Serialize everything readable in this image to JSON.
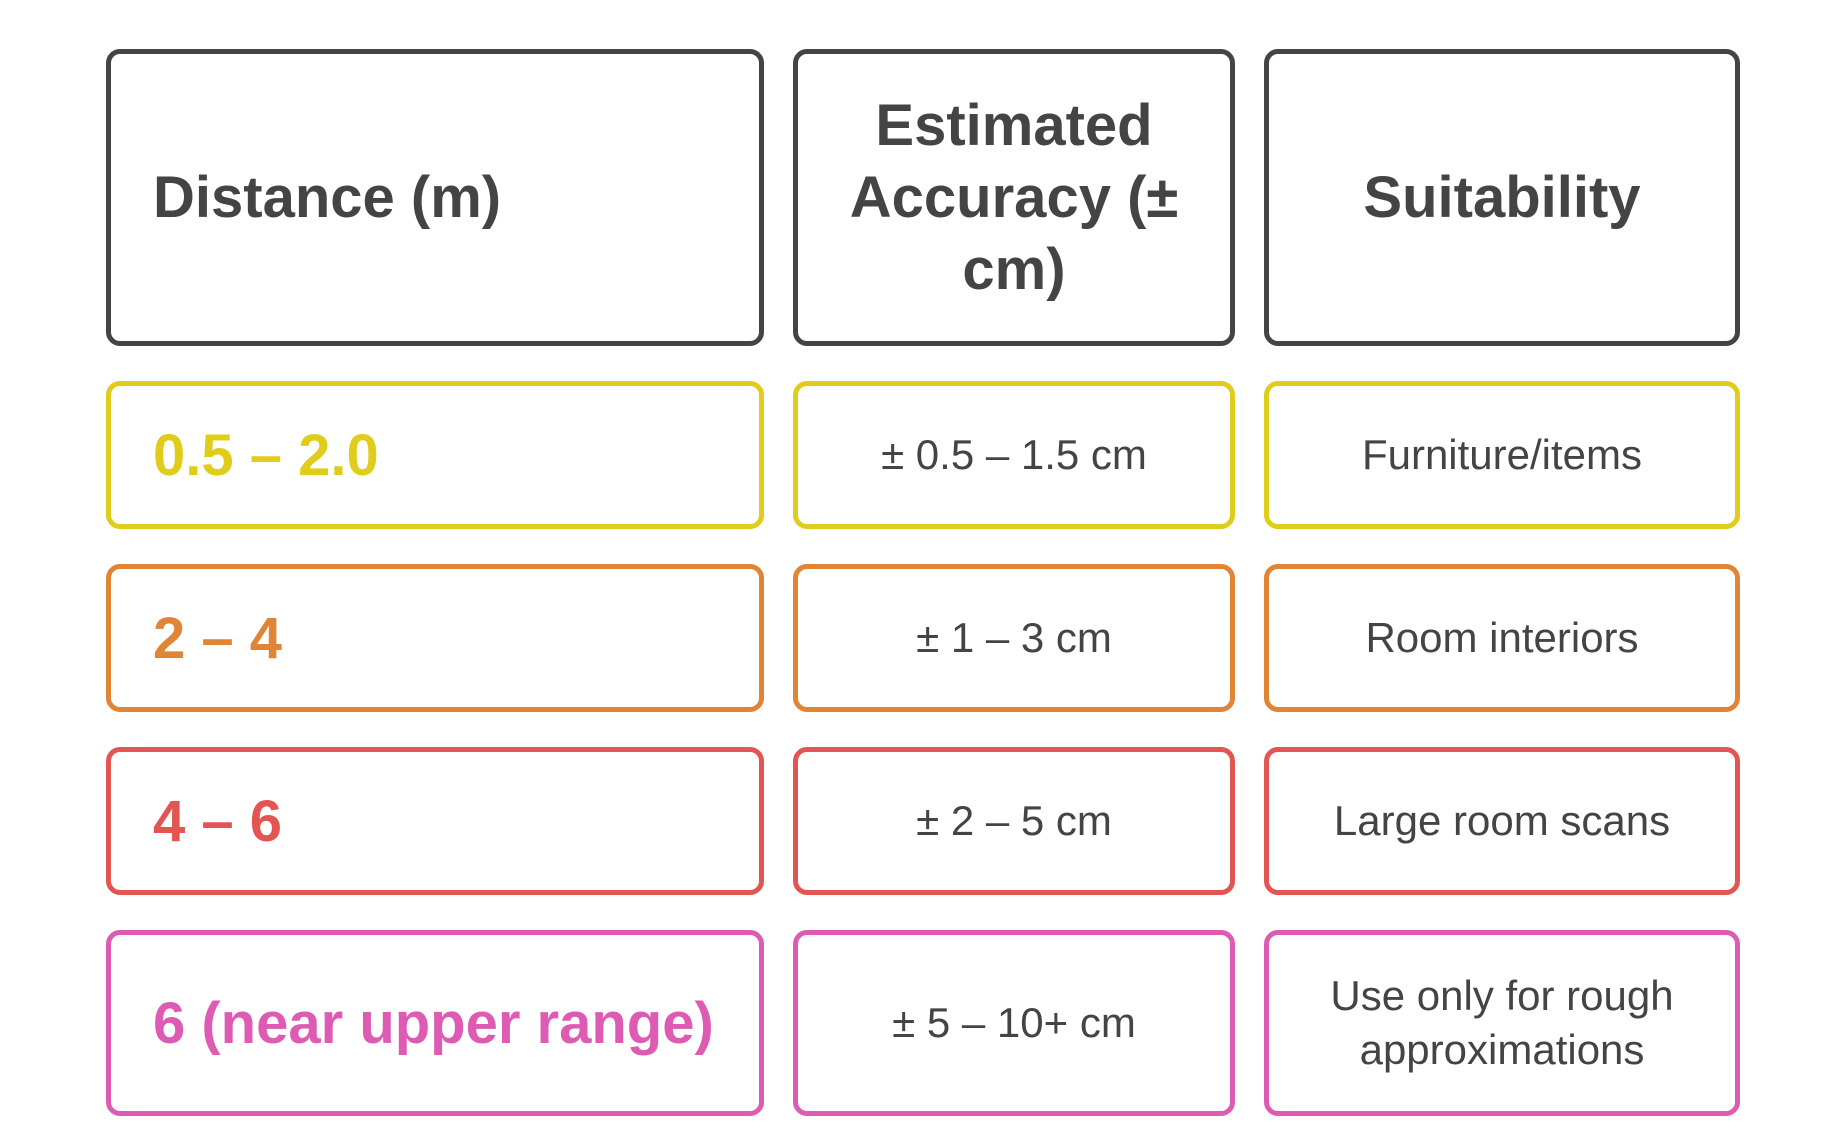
{
  "table": {
    "headers": [
      "Distance (m)",
      "Estimated Accuracy (± cm)",
      "Suitability"
    ],
    "rows": [
      {
        "distance": "0.5 – 2.0",
        "accuracy": "± 0.5 – 1.5 cm",
        "suitability": "Furniture/items",
        "color": "#e0cc1a"
      },
      {
        "distance": "2 – 4",
        "accuracy": "± 1 – 3 cm",
        "suitability": "Room interiors",
        "color": "#e08436"
      },
      {
        "distance": "4 – 6",
        "accuracy": "± 2 – 5 cm",
        "suitability": "Large room scans",
        "color": "#e25552"
      },
      {
        "distance": "6 (near upper range)",
        "accuracy": "± 5 – 10+ cm",
        "suitability": "Use only for rough approximations",
        "color": "#dd5bb3"
      }
    ]
  },
  "colors": {
    "header_border": "#444444",
    "text": "#444444"
  }
}
